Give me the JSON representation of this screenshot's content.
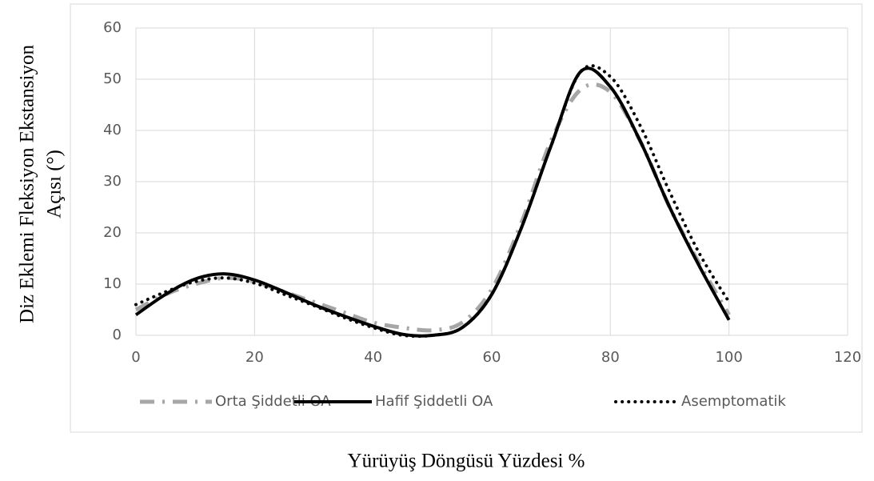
{
  "chart_data": {
    "type": "line",
    "x_label": "Yürüyüş Döngüsü Yüzdesi %",
    "y_label": [
      "Diz Eklemi Fleksiyon Ekstansiyon",
      "Açısı (°)"
    ],
    "x": [
      0,
      5,
      10,
      15,
      20,
      25,
      30,
      35,
      40,
      45,
      50,
      55,
      60,
      65,
      70,
      75,
      80,
      85,
      90,
      95,
      100
    ],
    "series": [
      {
        "name": "Orta Şiddetli OA",
        "color": "#a6a6a6",
        "style": "dashdot",
        "values": [
          5,
          8,
          10,
          11.2,
          10.5,
          8.5,
          6.5,
          4.5,
          2.5,
          1.5,
          1,
          2.5,
          9,
          22,
          38,
          48,
          47.5,
          38,
          25,
          14,
          4
        ]
      },
      {
        "name": "Hafif Şiddetli OA",
        "color": "#000000",
        "style": "solid",
        "values": [
          4,
          8,
          11,
          12,
          10.8,
          8.5,
          6,
          3.8,
          1.8,
          0.2,
          0,
          1.5,
          8,
          21,
          37,
          51.5,
          48.5,
          38,
          25,
          13.5,
          3
        ]
      },
      {
        "name": "Asemptomatik",
        "color": "#000000",
        "style": "dotted",
        "values": [
          6,
          8.5,
          10.5,
          11.2,
          10.2,
          8,
          5.8,
          3.5,
          1.5,
          0,
          0,
          1.5,
          8,
          21,
          37,
          51.5,
          50.5,
          41,
          28,
          16,
          6.5
        ]
      }
    ],
    "xlim": [
      0,
      120
    ],
    "xticks": [
      0,
      20,
      40,
      60,
      80,
      100,
      120
    ],
    "ylim": [
      0,
      60
    ],
    "yticks": [
      0,
      10,
      20,
      30,
      40,
      50,
      60
    ],
    "grid": true,
    "legend": "bottom"
  }
}
